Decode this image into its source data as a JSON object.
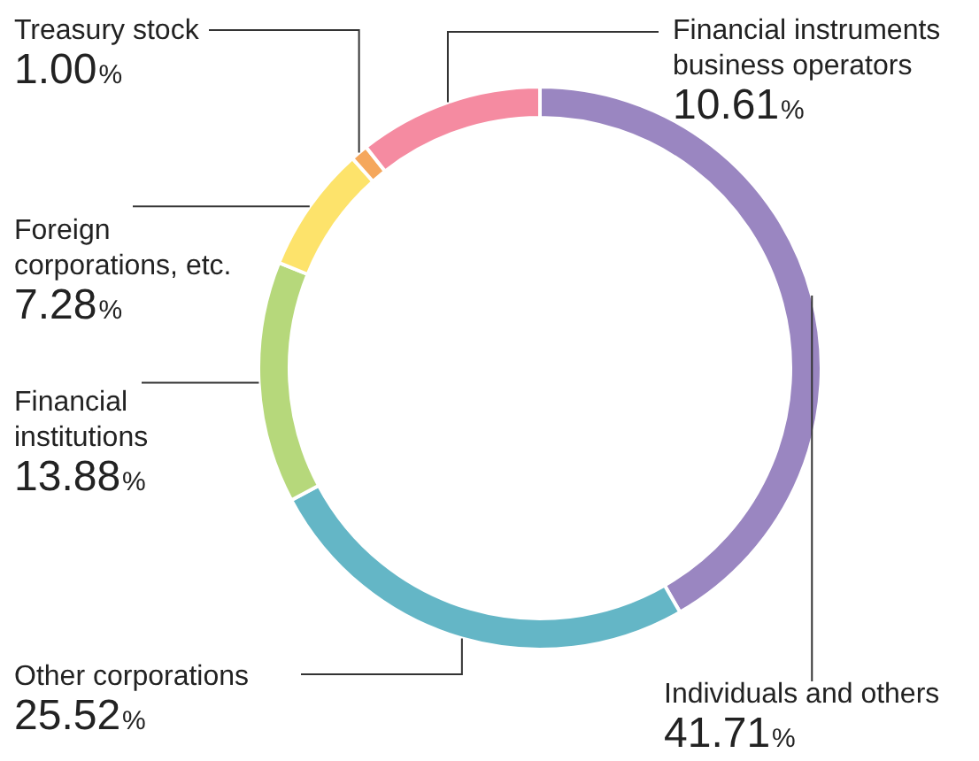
{
  "chart_data": {
    "type": "donut",
    "categories": [
      "Individuals and others",
      "Other corporations",
      "Financial institutions",
      "Foreign corporations, etc.",
      "Treasury stock",
      "Financial instruments business operators"
    ],
    "values": [
      41.71,
      25.52,
      13.88,
      7.28,
      1.0,
      10.61
    ],
    "value_labels": [
      "41.71%",
      "25.52%",
      "13.88%",
      "7.28%",
      "1.00%",
      "10.61%"
    ],
    "colors": [
      "#9a86c1",
      "#64b6c6",
      "#b6d87b",
      "#fde36b",
      "#f5a75c",
      "#f58ba1"
    ],
    "legend": false
  }
}
